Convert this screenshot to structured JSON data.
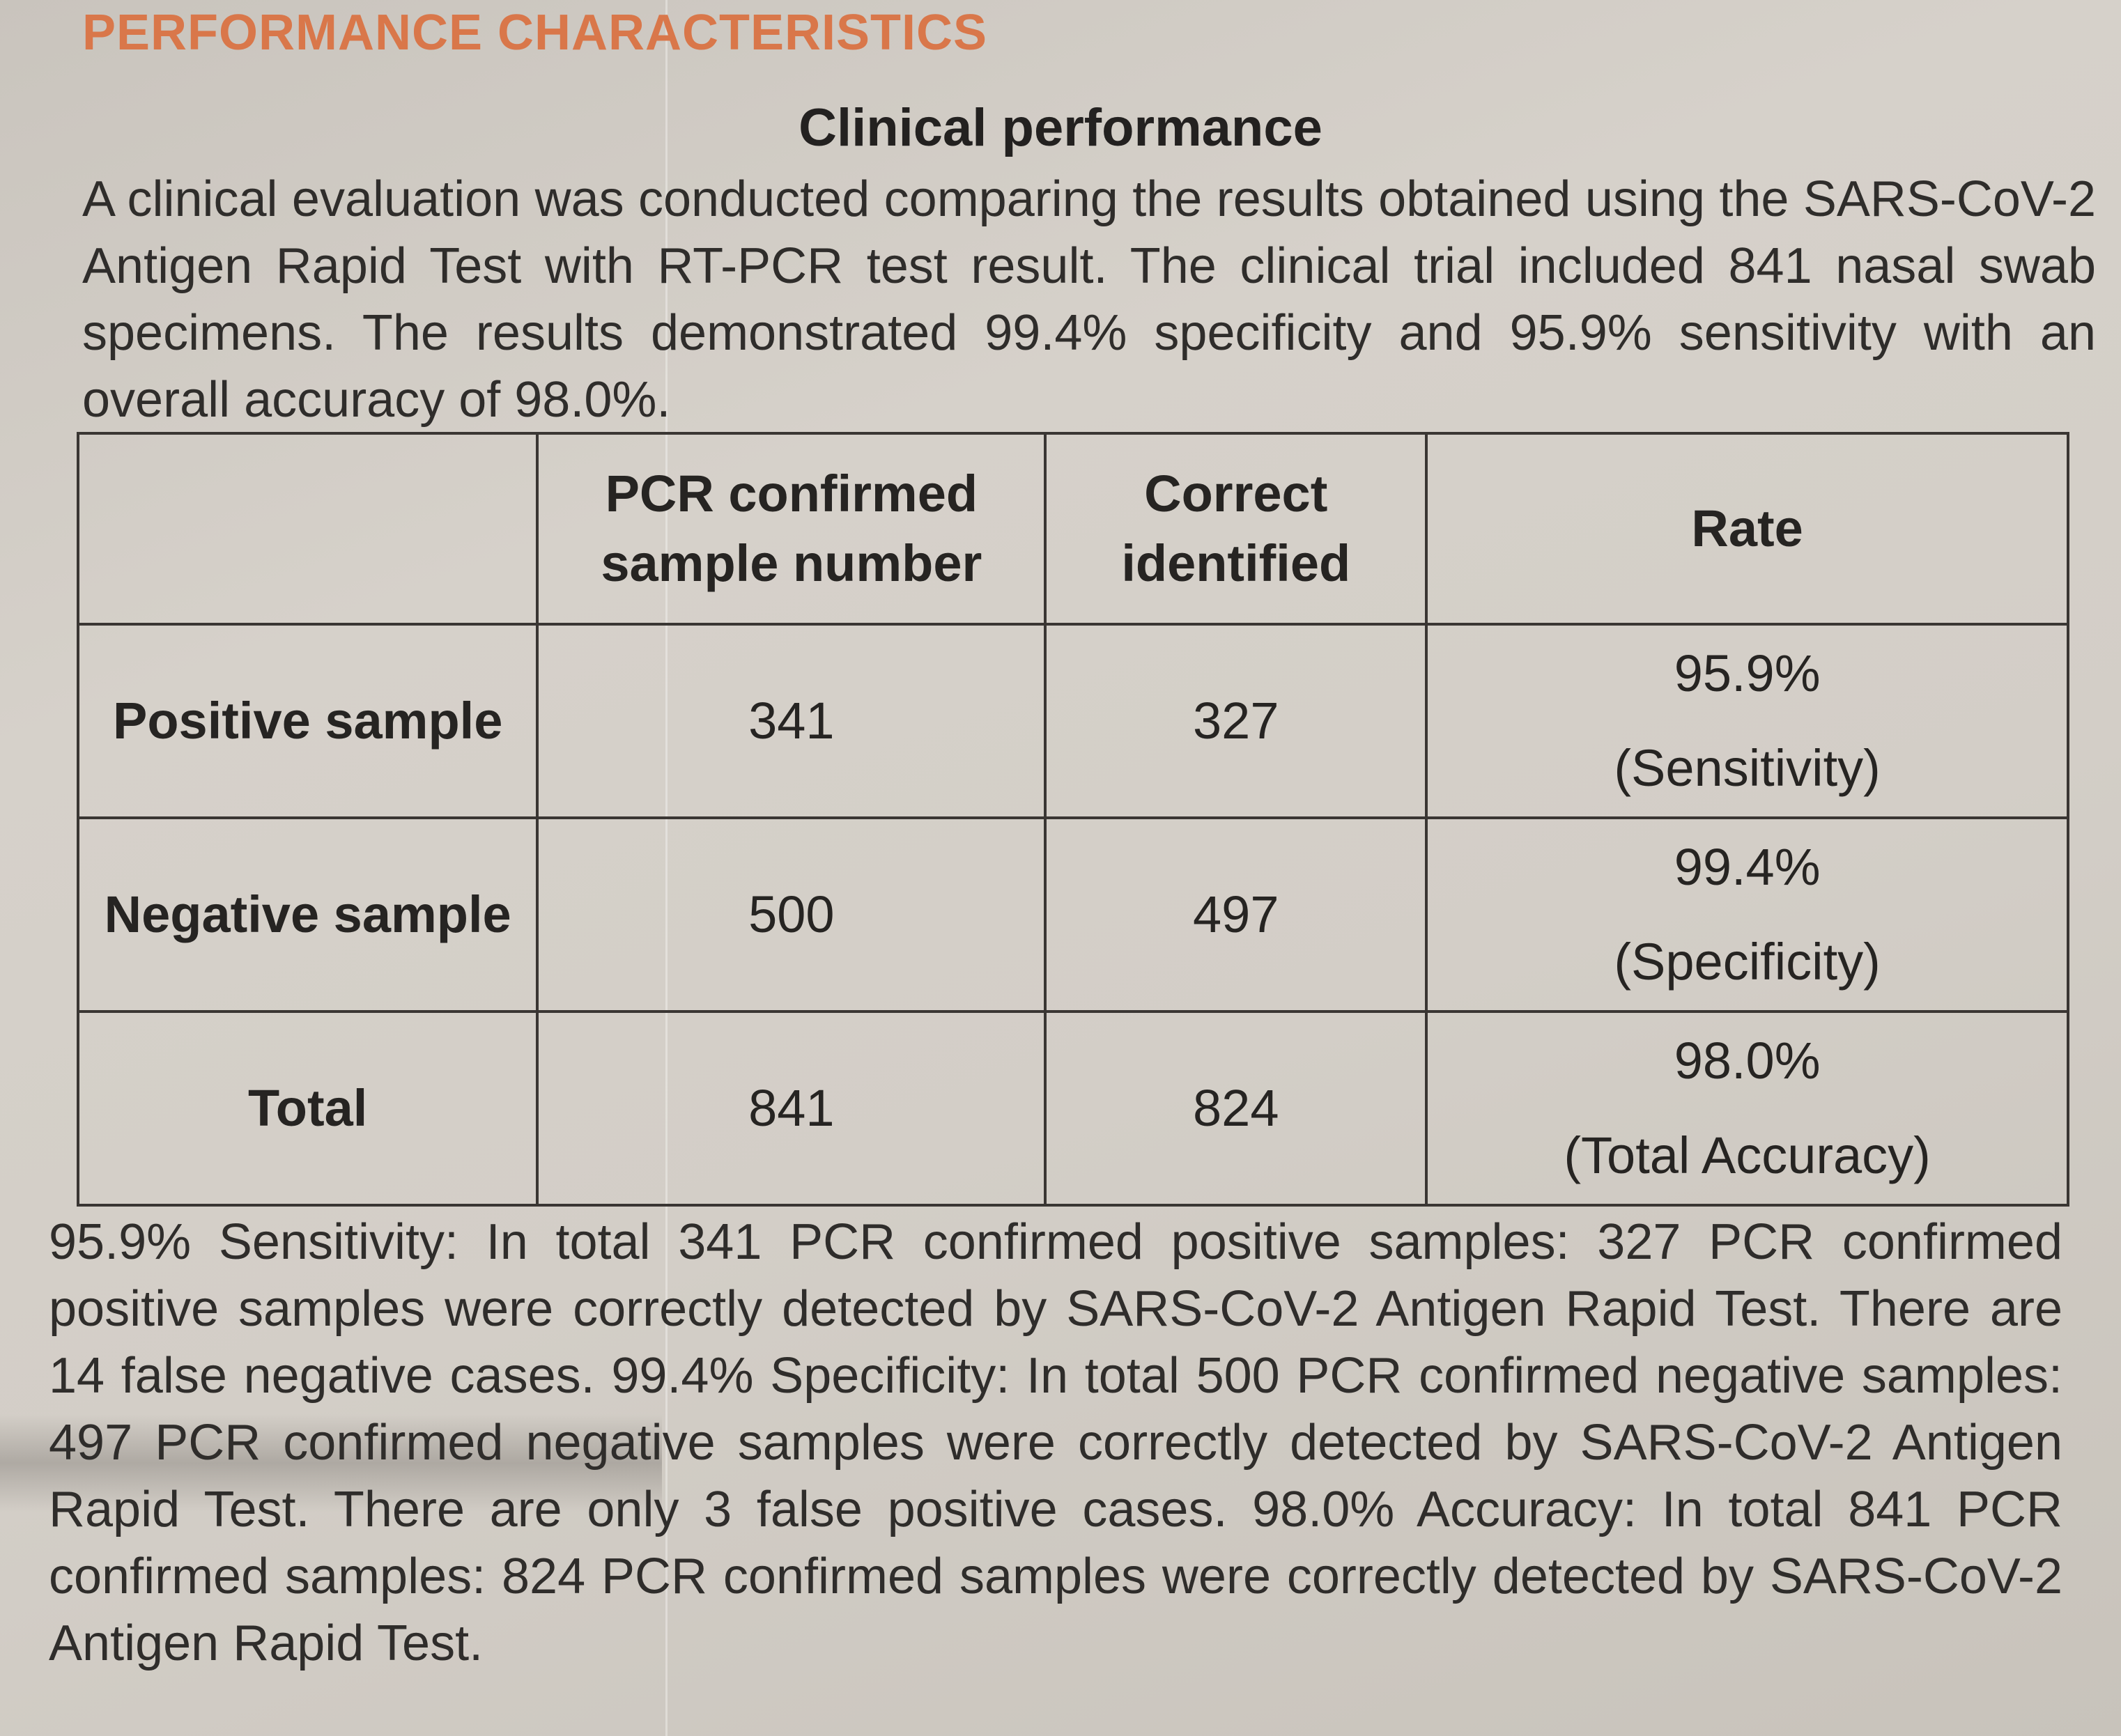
{
  "document": {
    "section_heading": "PERFORMANCE CHARACTERISTICS",
    "sub_heading": "Clinical performance",
    "intro": "A clinical evaluation was conducted comparing the results obtained using the SARS-CoV-2 Antigen Rapid Test with RT-PCR test result. The clinical trial included 841 nasal swab specimens. The results demonstrated 99.4% specificity and 95.9% sensitivity with an overall accuracy of 98.0%.",
    "colors": {
      "heading": "#d9774a",
      "text": "#2f2d2b",
      "paper": "#d3cec7"
    }
  },
  "table": {
    "headers": [
      "",
      "PCR confirmed sample number",
      "Correct identified",
      "Rate"
    ],
    "rows": [
      {
        "label": "Positive sample",
        "pcr_confirmed": "341",
        "correct": "327",
        "rate": "95.9%",
        "rate_label": "(Sensitivity)"
      },
      {
        "label": "Negative sample",
        "pcr_confirmed": "500",
        "correct": "497",
        "rate": "99.4%",
        "rate_label": "(Specificity)"
      },
      {
        "label": "Total",
        "pcr_confirmed": "841",
        "correct": "824",
        "rate": "98.0%",
        "rate_label": "(Total Accuracy)"
      }
    ]
  },
  "summary": "95.9% Sensitivity: In total 341 PCR confirmed positive samples: 327 PCR confirmed positive samples were correctly detected by SARS-CoV-2 Antigen Rapid Test. There are 14 false negative cases. 99.4% Specificity: In total 500 PCR confirmed negative samples: 497 PCR confirmed negative samples were correctly detected by SARS-CoV-2 Antigen Rapid Test. There are only 3 false positive cases. 98.0% Accuracy: In total 841 PCR confirmed samples: 824 PCR confirmed samples were correctly detected by SARS-CoV-2 Antigen Rapid Test."
}
